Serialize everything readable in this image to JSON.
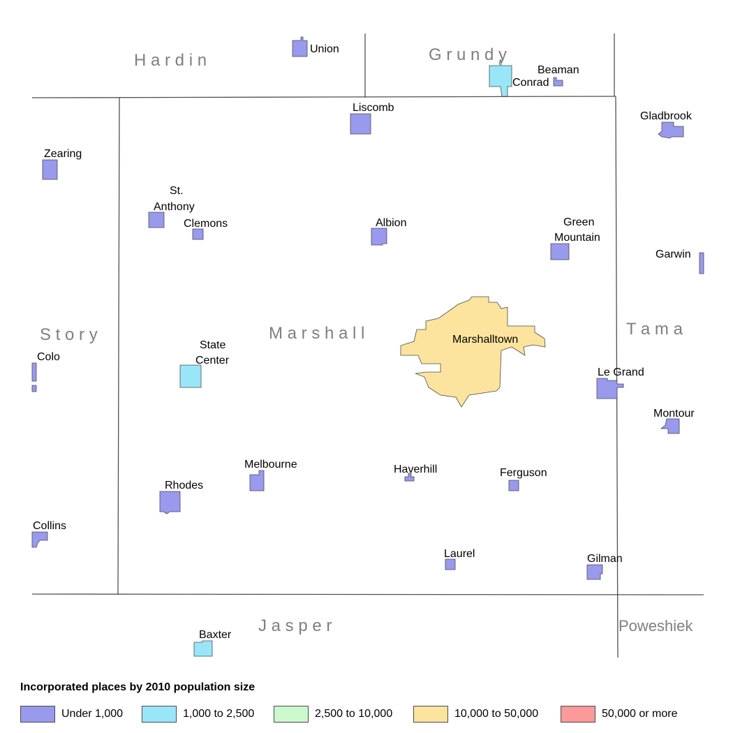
{
  "colors": {
    "under_1000": "#9999ee",
    "1000_2500": "#99e6f9",
    "2500_10000": "#ccf9cc",
    "10000_50000": "#fce49e",
    "50000_plus": "#fc9a9a",
    "boundary": "#505050",
    "county_label": "#7f7f7f"
  },
  "counties": {
    "hardin": "H a r d i n",
    "grundy": "G r u n d y",
    "story": "S t o r y",
    "marshall": "M a r s h a l l",
    "tama": "T a m a",
    "jasper": "J a s p e r",
    "poweshiek": "Poweshiek"
  },
  "places": {
    "union": "Union",
    "beaman": "Beaman",
    "conrad": "Conrad",
    "liscomb": "Liscomb",
    "gladbrook": "Gladbrook",
    "zearing": "Zearing",
    "st_anthony_1": "St.",
    "st_anthony_2": "Anthony",
    "clemons": "Clemons",
    "albion": "Albion",
    "green_mountain_1": "Green",
    "green_mountain_2": "Mountain",
    "garwin": "Garwin",
    "colo": "Colo",
    "state_center_1": "State",
    "state_center_2": "Center",
    "marshalltown": "Marshalltown",
    "le_grand": "Le Grand",
    "montour": "Montour",
    "melbourne": "Melbourne",
    "rhodes": "Rhodes",
    "haverhill": "Haverhill",
    "ferguson": "Ferguson",
    "collins": "Collins",
    "laurel": "Laurel",
    "gilman": "Gilman",
    "baxter": "Baxter"
  },
  "legend": {
    "title": "Incorporated places by 2010 population size",
    "items": [
      {
        "label": "Under 1,000",
        "color": "#9999ee"
      },
      {
        "label": "1,000 to 2,500",
        "color": "#99e6f9"
      },
      {
        "label": "2,500 to 10,000",
        "color": "#ccf9cc"
      },
      {
        "label": "10,000 to 50,000",
        "color": "#fce49e"
      },
      {
        "label": "50,000 or more",
        "color": "#fc9a9a"
      }
    ]
  }
}
